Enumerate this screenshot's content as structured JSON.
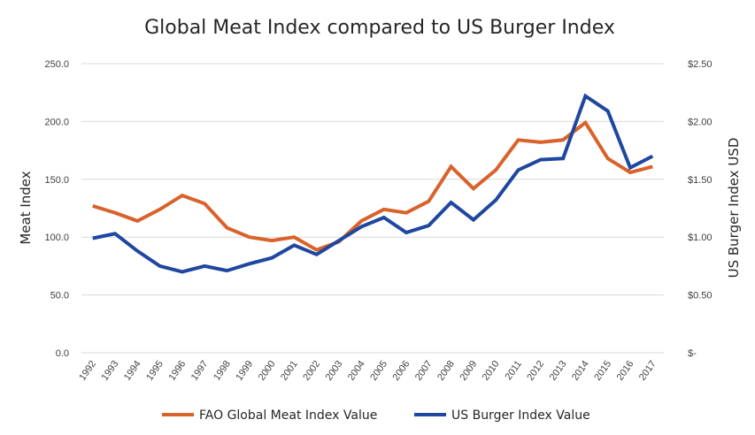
{
  "chart_data": {
    "type": "line",
    "title": "Global Meat Index compared to US Burger Index",
    "ylabel": "Meat Index",
    "y2label": "US Burger Index USD",
    "ylim": [
      0,
      250
    ],
    "y2lim": [
      0,
      2.5
    ],
    "grid": true,
    "legend_position": "bottom",
    "y_ticks": [
      "0.0",
      "50.0",
      "100.0",
      "150.0",
      "200.0",
      "250.0"
    ],
    "y2_ticks": [
      "$-",
      "$0.50",
      "$1.00",
      "$1.50",
      "$2.00",
      "$2.50"
    ],
    "categories": [
      "1992",
      "1993",
      "1994",
      "1995",
      "1996",
      "1997",
      "1998",
      "1999",
      "2000",
      "2001",
      "2002",
      "2003",
      "2004",
      "2005",
      "2006",
      "2007",
      "2008",
      "2009",
      "2010",
      "2011",
      "2012",
      "2013",
      "2014",
      "2015",
      "2016",
      "2017"
    ],
    "series": [
      {
        "name": "FAO Global Meat Index Value",
        "axis": "left",
        "color": "#d9622b",
        "values": [
          127,
          121,
          114,
          124,
          136,
          129,
          108,
          100,
          97,
          100,
          89,
          96,
          114,
          124,
          121,
          131,
          161,
          142,
          158,
          184,
          182,
          184,
          199,
          168,
          156,
          161
        ]
      },
      {
        "name": "US Burger Index Value",
        "axis": "right",
        "color": "#1f47a0",
        "values": [
          0.99,
          1.03,
          0.88,
          0.75,
          0.7,
          0.75,
          0.71,
          0.77,
          0.82,
          0.93,
          0.85,
          0.97,
          1.09,
          1.17,
          1.04,
          1.1,
          1.3,
          1.15,
          1.32,
          1.58,
          1.67,
          1.68,
          2.22,
          2.09,
          1.6,
          1.7
        ]
      }
    ]
  }
}
